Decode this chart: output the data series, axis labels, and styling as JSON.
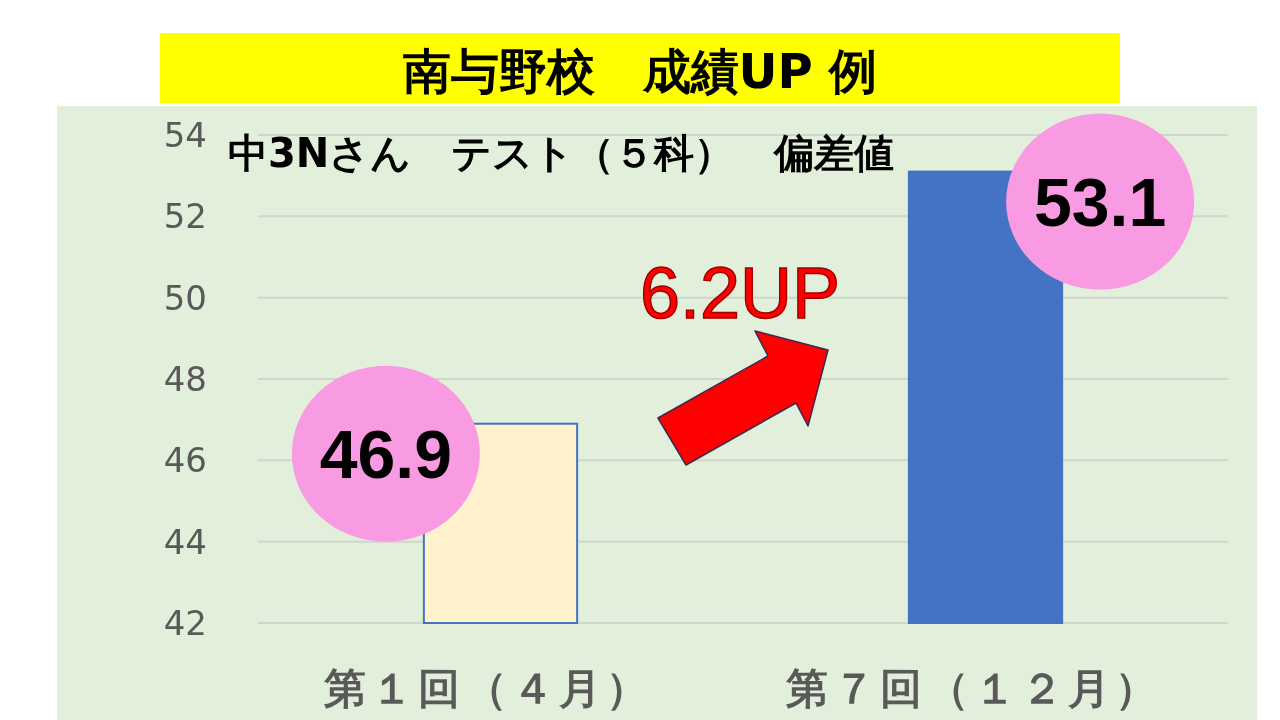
{
  "chart_data": {
    "type": "bar",
    "title": "南与野校　成績UP 例",
    "subtitle": "中3Nさん　テスト（５科）　偏差値",
    "categories": [
      "第１回（４月）",
      "第７回（１２月）"
    ],
    "values": [
      46.9,
      53.1
    ],
    "colors": [
      "#fff2cc",
      "#4472c4"
    ],
    "ylim": [
      42,
      54
    ],
    "yticks": [
      42,
      44,
      46,
      48,
      50,
      52,
      54
    ],
    "grid": "y",
    "data_labels": true,
    "annotations": [
      "6.2UP"
    ]
  }
}
